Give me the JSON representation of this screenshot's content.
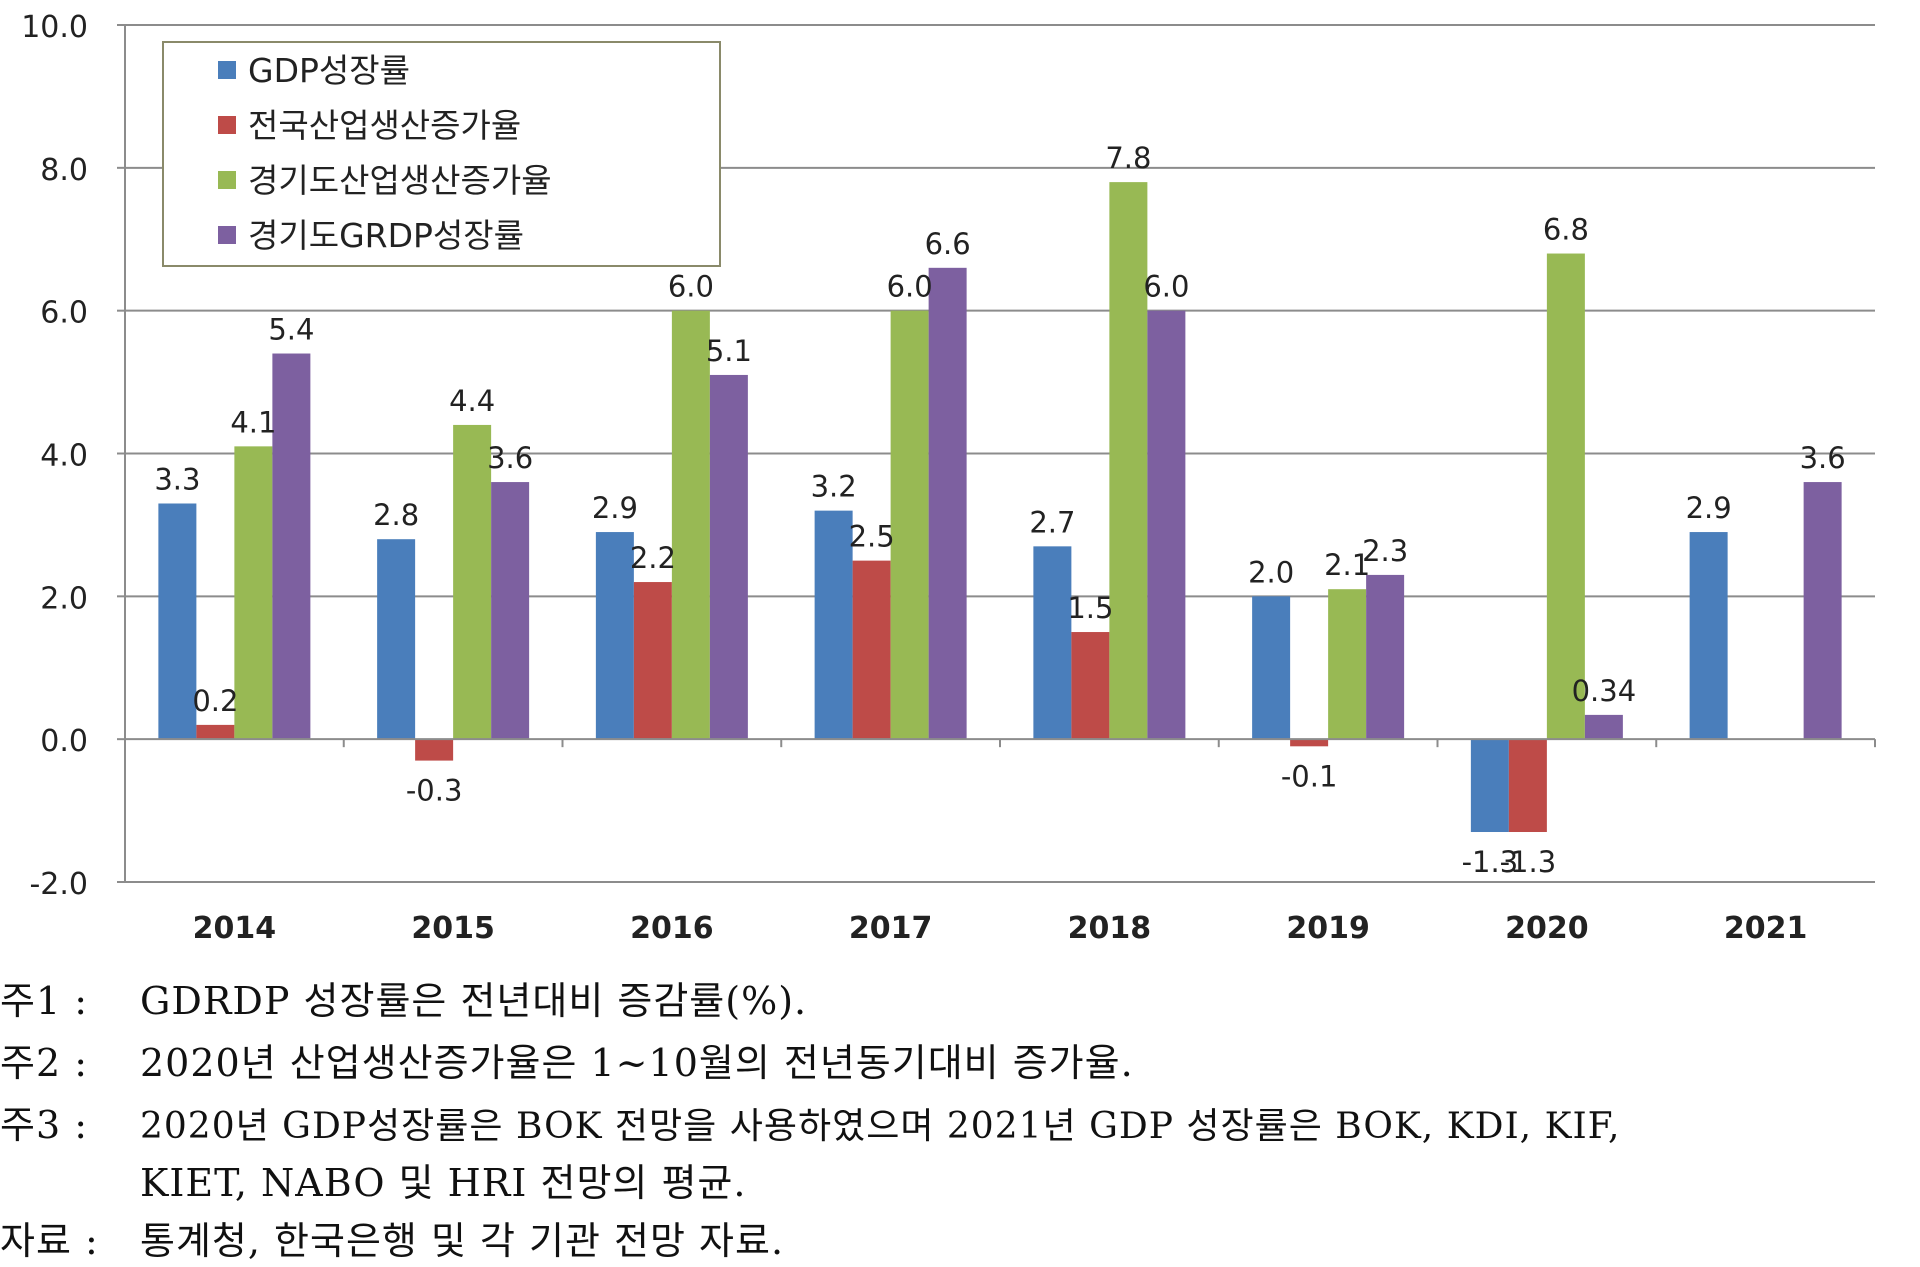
{
  "chart_data": {
    "type": "bar",
    "categories": [
      "2014",
      "2015",
      "2016",
      "2017",
      "2018",
      "2019",
      "2020",
      "2021"
    ],
    "series": [
      {
        "name": "GDP성장률",
        "color": "#4a7ebb",
        "values": [
          3.3,
          2.8,
          2.9,
          3.2,
          2.7,
          2.0,
          -1.3,
          2.9
        ],
        "labels": [
          "3.3",
          "2.8",
          "2.9",
          "3.2",
          "2.7",
          "2.0",
          "-1.3",
          "2.9"
        ]
      },
      {
        "name": "전국산업생산증가율",
        "color": "#be4b48",
        "values": [
          0.2,
          -0.3,
          2.2,
          2.5,
          1.5,
          -0.1,
          -1.3,
          null
        ],
        "labels": [
          "0.2",
          "-0.3",
          "2.2",
          "2.5",
          "1.5",
          "-0.1",
          "-1.3",
          null
        ]
      },
      {
        "name": "경기도산업생산증가율",
        "color": "#98b954",
        "values": [
          4.1,
          4.4,
          6.0,
          6.0,
          7.8,
          2.1,
          6.8,
          null
        ],
        "labels": [
          "4.1",
          "4.4",
          "6.0",
          "6.0",
          "7.8",
          "2.1",
          "6.8",
          null
        ]
      },
      {
        "name": "경기도GRDP성장률",
        "color": "#7d60a0",
        "values": [
          5.4,
          3.6,
          5.1,
          6.6,
          6.0,
          2.3,
          0.34,
          3.6
        ],
        "labels": [
          "5.4",
          "3.6",
          "5.1",
          "6.6",
          "6.0",
          "2.3",
          "0.34",
          "3.6"
        ]
      }
    ],
    "ylim": [
      -2.0,
      10.0
    ],
    "yticks": [
      "-2.0",
      "0.0",
      "2.0",
      "4.0",
      "6.0",
      "8.0",
      "10.0"
    ],
    "grid": true,
    "legend_position": "top-left",
    "title": "",
    "xlabel": "",
    "ylabel": ""
  },
  "notes": [
    {
      "label": "주1 :",
      "text": "GDRDP 성장률은 전년대비 증감률(%)."
    },
    {
      "label": "주2 :",
      "text": "2020년 산업생산증가율은 1~10월의 전년동기대비 증가율."
    },
    {
      "label": "주3 :",
      "text": "2020년 GDP성장률은 BOK 전망을 사용하였으며 2021년 GDP 성장률은 BOK, KDI, KIF,",
      "continuation": "KIET, NABO 및 HRI 전망의 평균."
    },
    {
      "label": "자료 :",
      "text": "통계청, 한국은행 및 각 기관 전망 자료."
    }
  ]
}
